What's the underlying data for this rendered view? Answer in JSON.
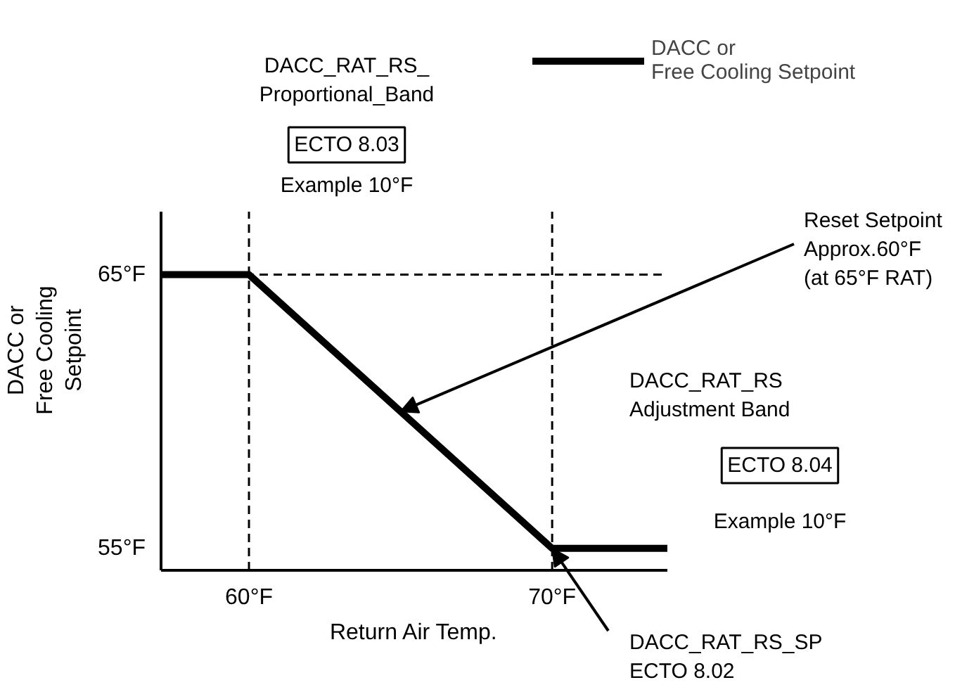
{
  "chart_data": {
    "type": "line",
    "x": [
      57.1,
      60,
      70,
      73.8
    ],
    "series": [
      {
        "name": "DACC or\nFree Cooling Setpoint",
        "color": "#000000",
        "values": [
          65,
          65,
          55,
          55
        ]
      }
    ],
    "xlim": [
      57.1,
      73.8
    ],
    "ylim": [
      54.2,
      67.3
    ],
    "xticks": [
      {
        "value": 60,
        "label": "60°F"
      },
      {
        "value": 70,
        "label": "70°F"
      }
    ],
    "yticks": [
      {
        "value": 55,
        "label": "55°F"
      },
      {
        "value": 65,
        "label": "65°F"
      }
    ],
    "xlabel": "Return Air Temp.",
    "ylabel": "DACC or\nFree Cooling\nSetpoint",
    "ref_lines": [
      {
        "axis": "x",
        "value": 60,
        "label": null,
        "color": "#000000",
        "line_style": "dashed"
      },
      {
        "axis": "x",
        "value": 70,
        "label": null,
        "color": "#000000",
        "line_style": "dashed"
      },
      {
        "axis": "y",
        "value": 65,
        "label": null,
        "color": "#000000",
        "line_style": "dashed"
      }
    ],
    "annotations": [
      "DACC_RAT_RS_\nProportional_Band",
      "ECTO 8.03",
      "Example 10°F",
      {
        "text": "Reset Setpoint\nApprox.60°F\n(at 65°F RAT)",
        "x": 65,
        "y": 60
      },
      "DACC_RAT_RS\nAdjustment Band",
      "ECTO 8.04",
      "Example 10°F",
      {
        "text": "DACC_RAT_RS_SP\nECTO 8.02",
        "x": 70,
        "y": 55
      }
    ],
    "grid": false,
    "legend": "top right",
    "marker": "none",
    "line_style": "solid"
  }
}
